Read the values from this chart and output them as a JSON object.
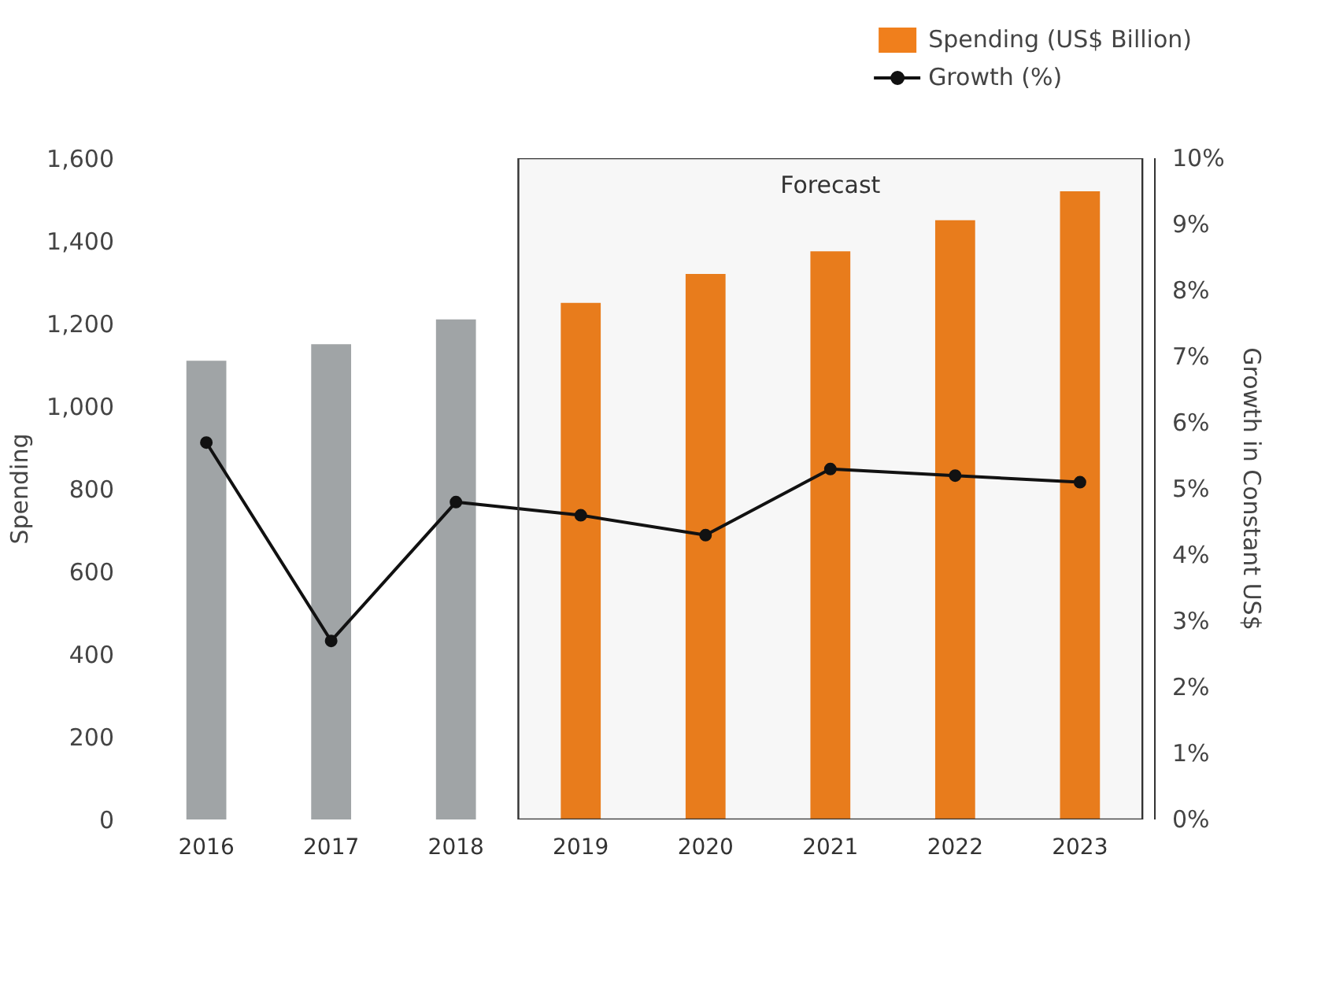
{
  "chart_data": {
    "type": "bar",
    "ylabel": "Spending",
    "y2label": "Growth in Constant US$",
    "categories": [
      "2016",
      "2017",
      "2018",
      "2019",
      "2020",
      "2021",
      "2022",
      "2023"
    ],
    "series": [
      {
        "name": "Spending (US$ Billion)",
        "colors": [
          "#a0a4a6",
          "#a0a4a6",
          "#a0a4a6",
          "#f07f1c",
          "#f07f1c",
          "#f07f1c",
          "#f07f1c",
          "#f07f1c"
        ],
        "values": [
          1110,
          1150,
          1210,
          1250,
          1320,
          1375,
          1450,
          1520
        ]
      },
      {
        "name": "Growth (%)",
        "type": "line",
        "axis": "y2",
        "color": "#111111",
        "marker": "circle",
        "values": [
          5.7,
          2.7,
          4.8,
          4.6,
          4.3,
          5.3,
          5.2,
          5.1
        ]
      }
    ],
    "ylim": [
      0,
      1600
    ],
    "yticks": [
      0,
      200,
      400,
      600,
      800,
      {
        "value": 1000,
        "label": "1,000"
      },
      {
        "value": 1200,
        "label": "1,200"
      },
      {
        "value": 1400,
        "label": "1,400"
      },
      {
        "value": 1600,
        "label": "1,600"
      }
    ],
    "y2lim": [
      0,
      10
    ],
    "y2ticks": [
      {
        "value": 0,
        "label": "0%"
      },
      {
        "value": 1,
        "label": "1%"
      },
      {
        "value": 2,
        "label": "2%"
      },
      {
        "value": 3,
        "label": "3%"
      },
      {
        "value": 4,
        "label": "4%"
      },
      {
        "value": 5,
        "label": "5%"
      },
      {
        "value": 6,
        "label": "6%"
      },
      {
        "value": 7,
        "label": "7%"
      },
      {
        "value": 8,
        "label": "8%"
      },
      {
        "value": 9,
        "label": "9%"
      },
      {
        "value": 10,
        "label": "10%"
      }
    ],
    "bands": [
      {
        "axis": "x",
        "from": "2019",
        "to": "2023",
        "label": "Forecast",
        "color": "#333333"
      }
    ],
    "grid": false,
    "legend": "top right"
  }
}
